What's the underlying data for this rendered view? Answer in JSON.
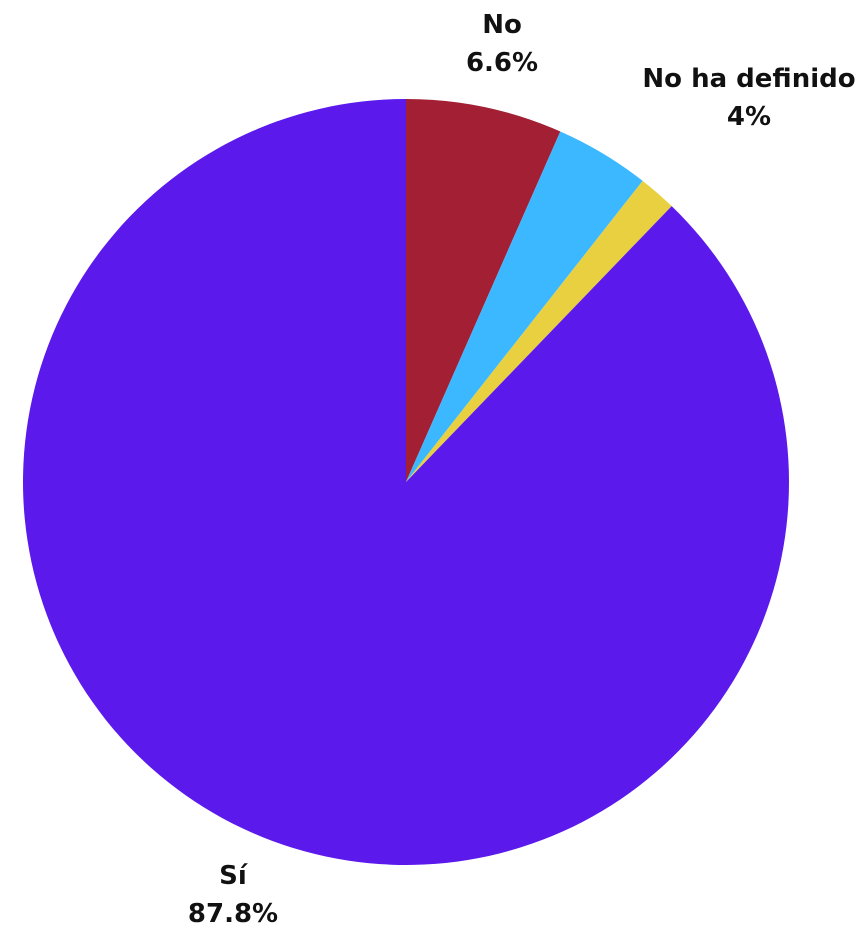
{
  "chart_data": {
    "type": "pie",
    "title": "",
    "start_angle_deg": 0,
    "direction": "clockwise",
    "slices": [
      {
        "label": "No",
        "value": 6.6,
        "display_value": "6.6%",
        "color": "#a31f33"
      },
      {
        "label": "No ha definido",
        "value": 4.0,
        "display_value": "4%",
        "color": "#3bb8ff"
      },
      {
        "label": "",
        "value": 1.6,
        "display_value": "",
        "color": "#e8d040"
      },
      {
        "label": "Sí",
        "value": 87.8,
        "display_value": "87.8%",
        "color": "#5b19ec"
      }
    ]
  }
}
